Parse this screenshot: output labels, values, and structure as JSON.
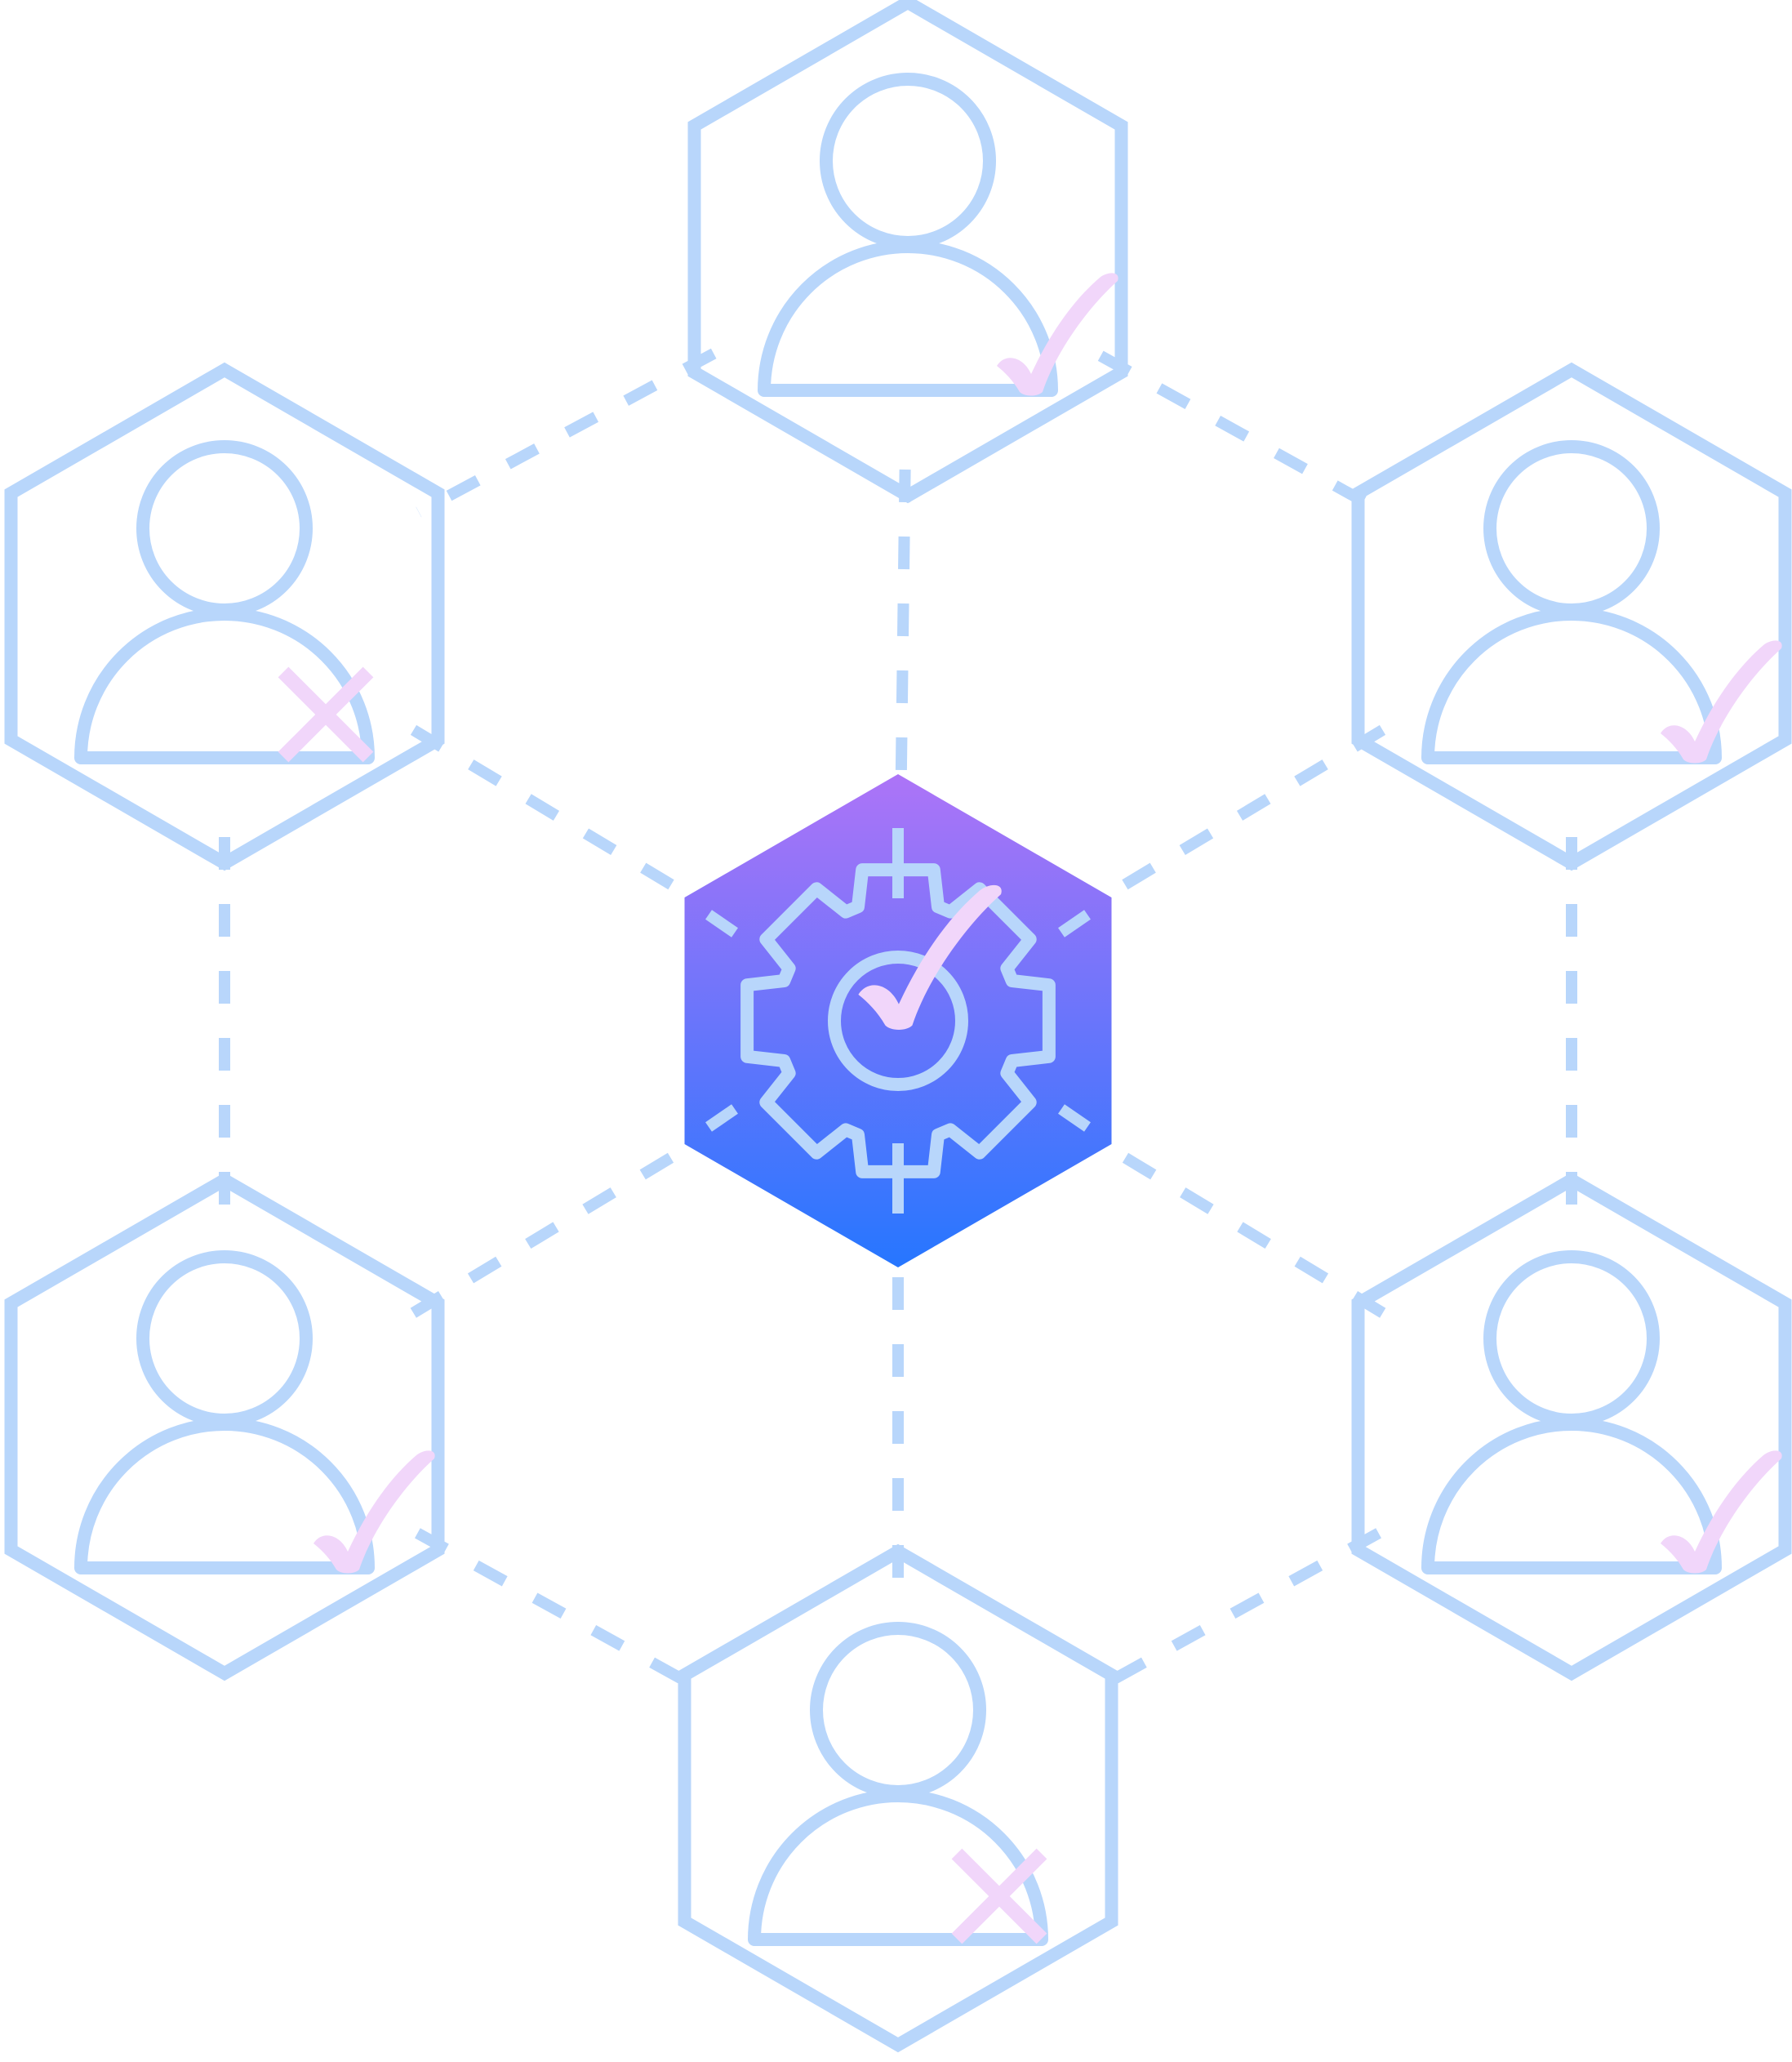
{
  "colors": {
    "stroke": "#b8d6fb",
    "mark": "#f1d6fa",
    "hub_top": "#ad74f7",
    "hub_bottom": "#2676ff",
    "background": "#ffffff"
  },
  "hub": {
    "icon": "gear-check-icon",
    "status": "approved"
  },
  "nodes": [
    {
      "id": "top",
      "icon": "user-icon",
      "status": "approved"
    },
    {
      "id": "upper-left",
      "icon": "user-icon",
      "status": "rejected"
    },
    {
      "id": "upper-right",
      "icon": "user-icon",
      "status": "approved"
    },
    {
      "id": "lower-left",
      "icon": "user-icon",
      "status": "approved"
    },
    {
      "id": "lower-right",
      "icon": "user-icon",
      "status": "approved"
    },
    {
      "id": "bottom",
      "icon": "user-icon",
      "status": "rejected"
    }
  ],
  "links": [
    [
      "top",
      "hub"
    ],
    [
      "upper-left",
      "hub"
    ],
    [
      "upper-right",
      "hub"
    ],
    [
      "lower-left",
      "hub"
    ],
    [
      "lower-right",
      "hub"
    ],
    [
      "bottom",
      "hub"
    ],
    [
      "top",
      "upper-left"
    ],
    [
      "top",
      "upper-right"
    ],
    [
      "upper-left",
      "lower-left"
    ],
    [
      "upper-right",
      "lower-right"
    ],
    [
      "lower-left",
      "bottom"
    ],
    [
      "lower-right",
      "bottom"
    ]
  ]
}
